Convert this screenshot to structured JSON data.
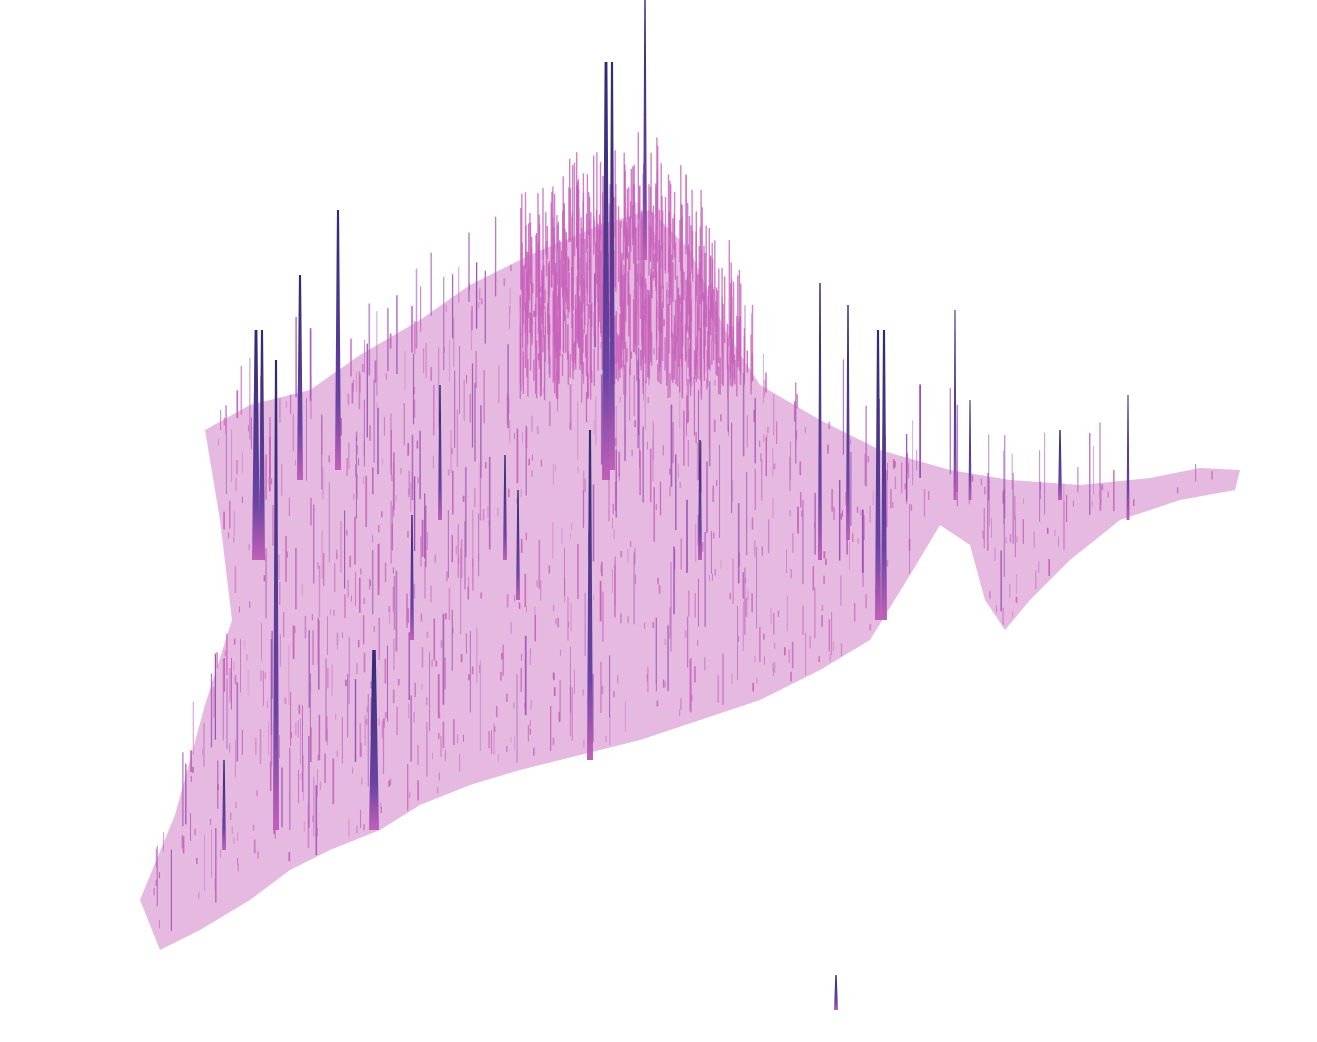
{
  "map": {
    "kind": "3d-spike-density-map",
    "colors": {
      "low": "#c662b9",
      "mid": "#a253b8",
      "high": "#34307a",
      "background": "#ffffff"
    },
    "legend": null,
    "labels": []
  }
}
